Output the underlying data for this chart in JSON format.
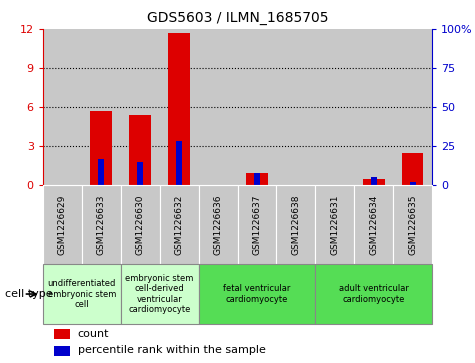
{
  "title": "GDS5603 / ILMN_1685705",
  "samples": [
    "GSM1226629",
    "GSM1226633",
    "GSM1226630",
    "GSM1226632",
    "GSM1226636",
    "GSM1226637",
    "GSM1226638",
    "GSM1226631",
    "GSM1226634",
    "GSM1226635"
  ],
  "counts": [
    0,
    5.7,
    5.4,
    11.7,
    0,
    0.9,
    0,
    0,
    0.5,
    2.5
  ],
  "percentiles": [
    0,
    17,
    15,
    28,
    0,
    8,
    0,
    0,
    5,
    2
  ],
  "ylim_left": [
    0,
    12
  ],
  "ylim_right": [
    0,
    100
  ],
  "yticks_left": [
    0,
    3,
    6,
    9,
    12
  ],
  "yticks_right": [
    0,
    25,
    50,
    75,
    100
  ],
  "ytick_labels_left": [
    "0",
    "3",
    "6",
    "9",
    "12"
  ],
  "ytick_labels_right": [
    "0",
    "25",
    "50",
    "75",
    "100%"
  ],
  "bar_color": "#dd0000",
  "percentile_color": "#0000cc",
  "cell_types": [
    {
      "label": "undifferentiated\nembryonic stem\ncell",
      "start": 0,
      "end": 2,
      "color": "#ccffcc"
    },
    {
      "label": "embryonic stem\ncell-derived\nventricular\ncardiomyocyte",
      "start": 2,
      "end": 4,
      "color": "#ccffcc"
    },
    {
      "label": "fetal ventricular\ncardiomyocyte",
      "start": 4,
      "end": 7,
      "color": "#55dd55"
    },
    {
      "label": "adult ventricular\ncardiomyocyte",
      "start": 7,
      "end": 10,
      "color": "#55dd55"
    }
  ],
  "legend_count_label": "count",
  "legend_percentile_label": "percentile rank within the sample",
  "cell_type_label": "cell type",
  "bar_width": 0.55,
  "bg_color": "#ffffff",
  "sample_bg_color": "#c8c8c8"
}
